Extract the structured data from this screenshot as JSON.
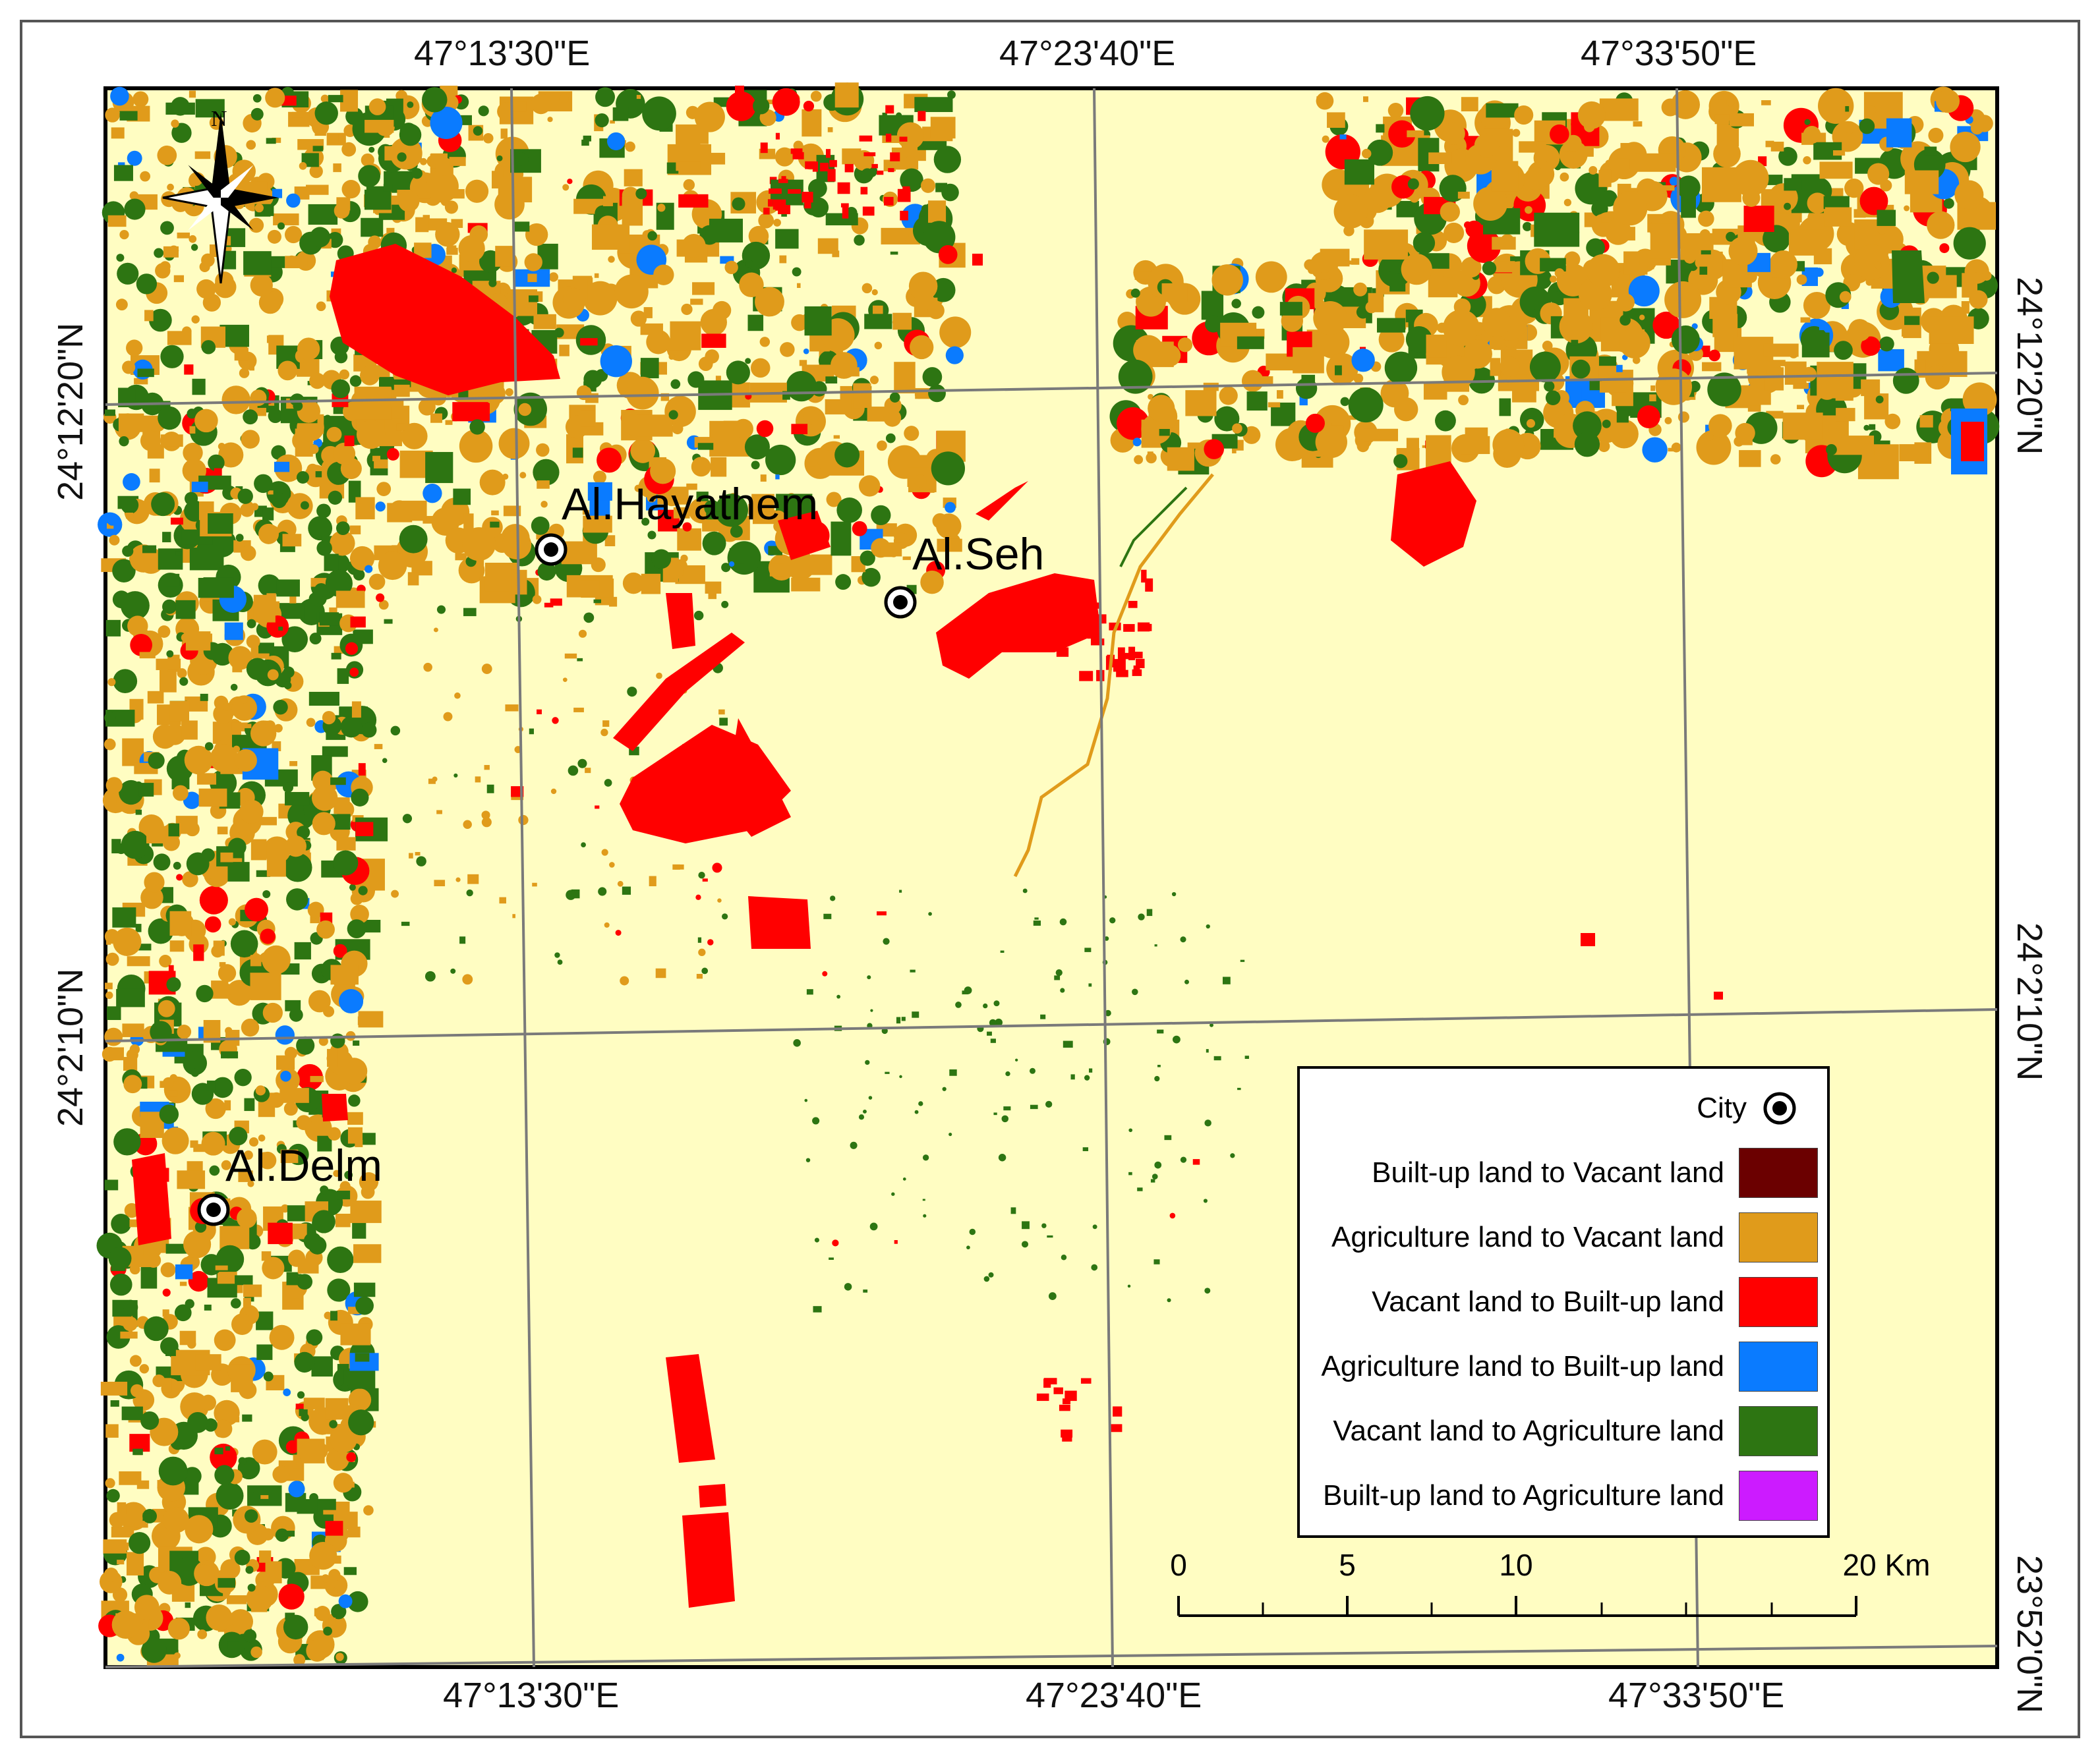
{
  "map": {
    "background_color": "#FFFDC2",
    "graticule_color": "#7a7a7a",
    "top_longitudes": [
      "47°13'30\"E",
      "47°23'40\"E",
      "47°33'50\"E"
    ],
    "bottom_longitudes": [
      "47°13'30\"E",
      "47°23'40\"E",
      "47°33'50\"E"
    ],
    "left_latitudes": [
      "24°12'20\"N",
      "24°2'10\"N"
    ],
    "right_latitudes": [
      "24°12'20\"N",
      "24°2'10\"N",
      "23°52'0\"N"
    ],
    "north_arrow": {
      "label": "N",
      "icon": "north-arrow-compass-icon"
    }
  },
  "cities": [
    {
      "name": "Al.Hayathem",
      "icon": "city-marker-icon"
    },
    {
      "name": "Al.Seh",
      "icon": "city-marker-icon"
    },
    {
      "name": "Al.Delm",
      "icon": "city-marker-icon"
    }
  ],
  "legend": {
    "city_label": "City",
    "city_icon": "city-marker-icon",
    "items": [
      {
        "label": "Built-up land to Vacant land",
        "color": "#6B0000"
      },
      {
        "label": "Agriculture land to Vacant land",
        "color": "#E09B1B"
      },
      {
        "label": "Vacant land to Built-up land",
        "color": "#FF0000"
      },
      {
        "label": "Agriculture land to Built-up land",
        "color": "#0A7BFF"
      },
      {
        "label": "Vacant land to Agriculture land",
        "color": "#2D7512"
      },
      {
        "label": "Built-up land to Agriculture land",
        "color": "#CC1BFF"
      }
    ]
  },
  "scale_bar": {
    "labels": [
      "0",
      "5",
      "10",
      "20 Km"
    ]
  }
}
